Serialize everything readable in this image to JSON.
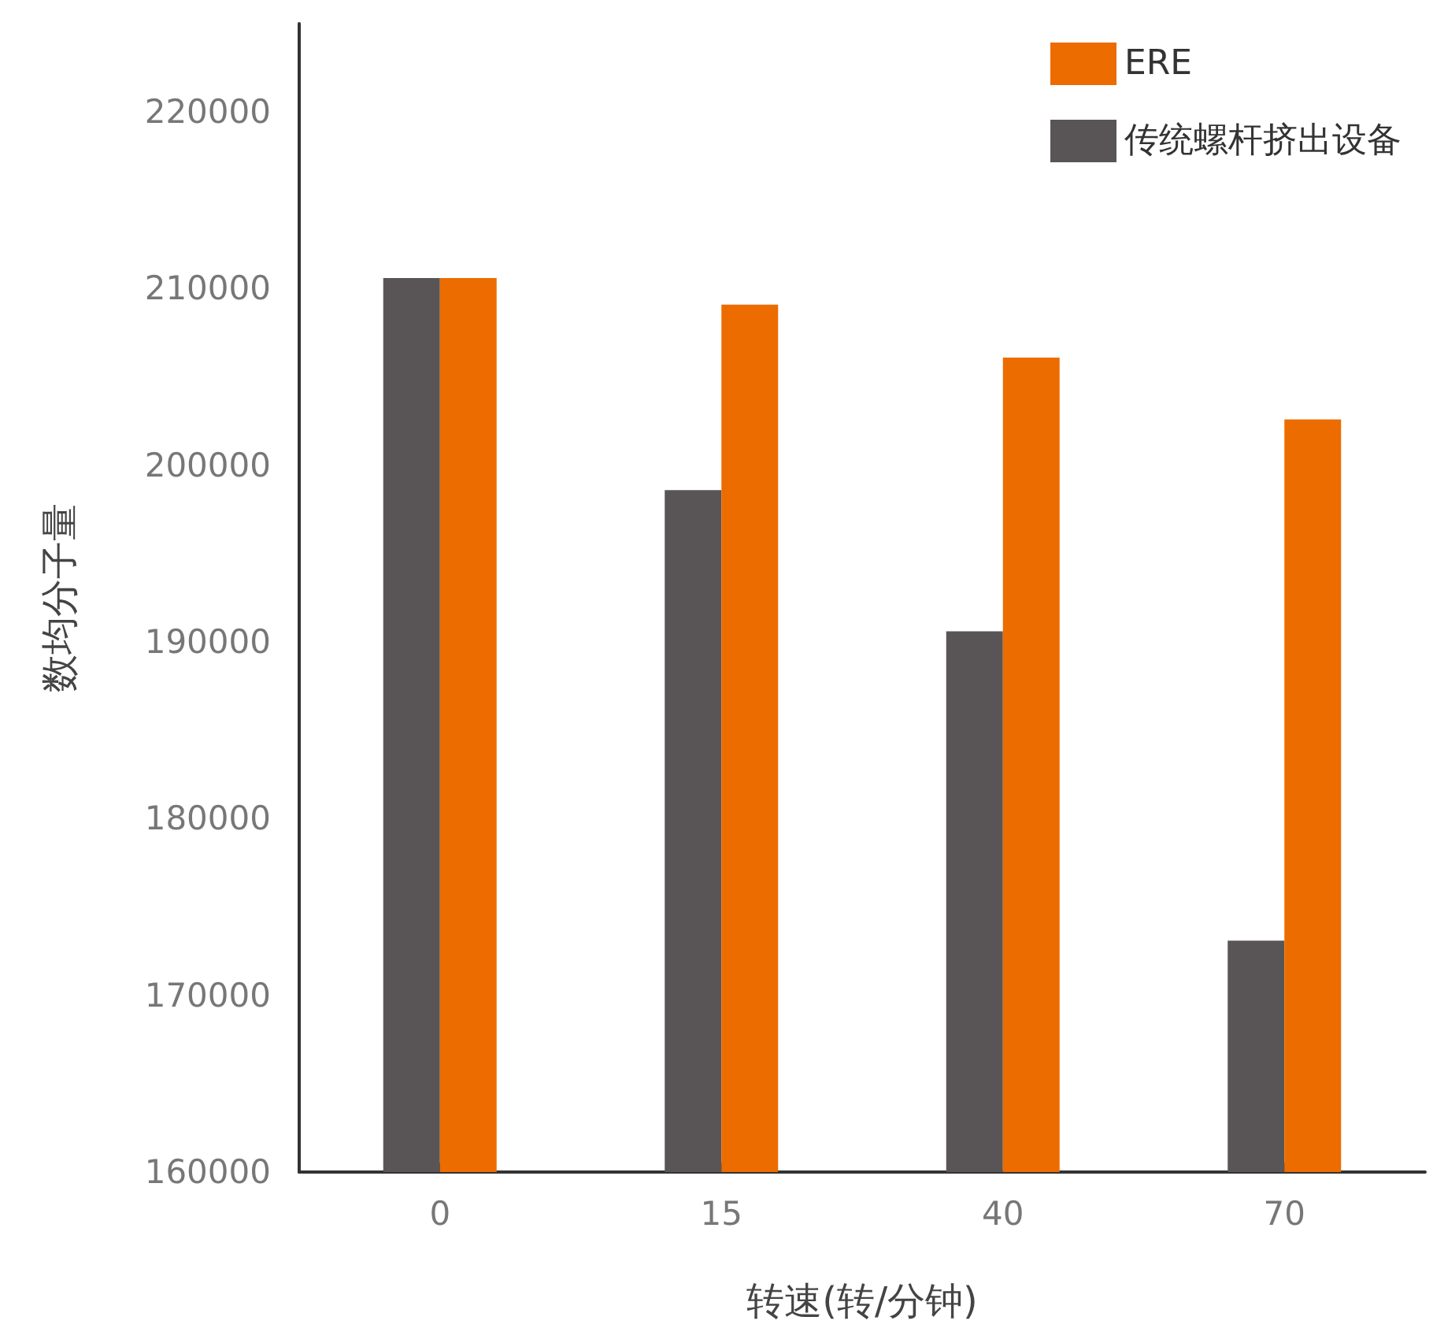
{
  "chart_data": {
    "type": "bar",
    "xlabel": "转速(转/分钟)",
    "ylabel": "数均分子量",
    "categories": [
      "0",
      "15",
      "40",
      "70"
    ],
    "series": [
      {
        "name": "传统螺杆挤出设备",
        "color": "#595556",
        "values": [
          210600,
          198600,
          190600,
          173100
        ]
      },
      {
        "name": "ERE",
        "color": "#ec6c00",
        "values": [
          210600,
          209100,
          206100,
          202600
        ]
      }
    ],
    "ylim": [
      160000,
      225000
    ],
    "yticks": [
      160000,
      170000,
      180000,
      190000,
      200000,
      210000,
      220000
    ],
    "grid": false,
    "legend": "top right"
  }
}
